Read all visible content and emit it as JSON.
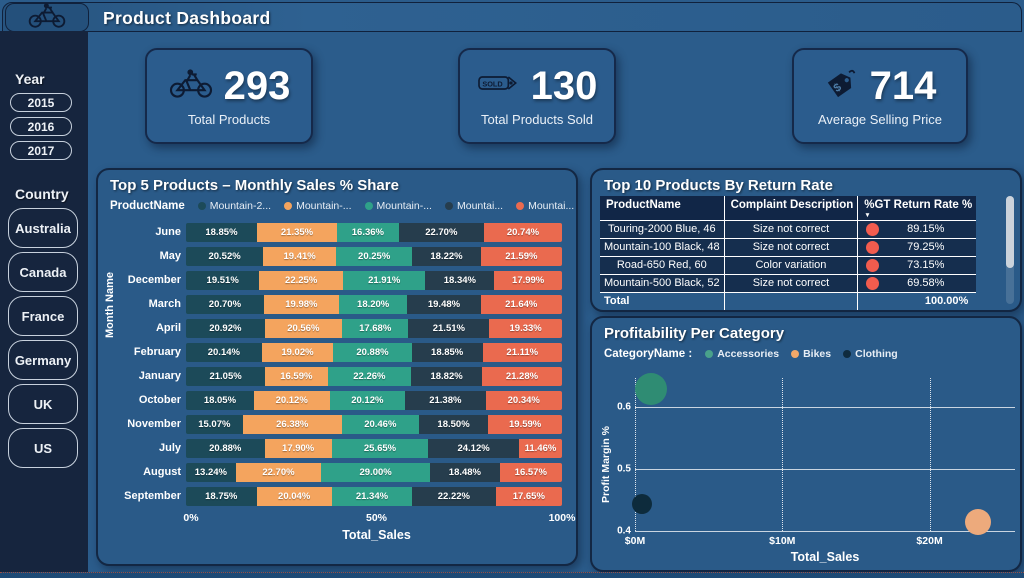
{
  "header": {
    "title": "Product Dashboard"
  },
  "sidebar": {
    "year_label": "Year",
    "years": [
      "2015",
      "2016",
      "2017"
    ],
    "country_label": "Country",
    "countries": [
      "Australia",
      "Canada",
      "France",
      "Germany",
      "UK",
      "US"
    ]
  },
  "kpis": [
    {
      "icon": "bicycle-icon",
      "value": "293",
      "label": "Total Products"
    },
    {
      "icon": "sold-tag-icon",
      "value": "130",
      "label": "Total Products Sold"
    },
    {
      "icon": "price-tag-icon",
      "value": "714",
      "label": "Average Selling Price"
    }
  ],
  "colors": {
    "page_bg": "#2B5C8B",
    "sidebar_bg": "#16253E",
    "table_red_dot": "#F25C4E"
  },
  "chart_data": [
    {
      "type": "bar",
      "title": "Top 5 Products – Monthly Sales % Share",
      "legend_label": "ProductName",
      "series": [
        {
          "name": "Mountain-2...",
          "color": "#1C4A59"
        },
        {
          "name": "Mountain-...",
          "color": "#F4A45E"
        },
        {
          "name": "Mountain-...",
          "color": "#2FA189"
        },
        {
          "name": "Mountai...",
          "color": "#263D4D"
        },
        {
          "name": "Mountai...",
          "color": "#EA6A4F"
        }
      ],
      "categories": [
        "June",
        "May",
        "December",
        "March",
        "April",
        "February",
        "January",
        "October",
        "November",
        "July",
        "August",
        "September"
      ],
      "values": [
        [
          18.85,
          21.35,
          16.36,
          22.7,
          20.74
        ],
        [
          20.52,
          19.41,
          20.25,
          18.22,
          21.59
        ],
        [
          19.51,
          22.25,
          21.91,
          18.34,
          17.99
        ],
        [
          20.7,
          19.98,
          18.2,
          19.48,
          21.64
        ],
        [
          20.92,
          20.56,
          17.68,
          21.51,
          19.33
        ],
        [
          20.14,
          19.02,
          20.88,
          18.85,
          21.11
        ],
        [
          21.05,
          16.59,
          22.26,
          18.82,
          21.28
        ],
        [
          18.05,
          20.12,
          20.12,
          21.38,
          20.34
        ],
        [
          15.07,
          26.38,
          20.46,
          18.5,
          19.59
        ],
        [
          20.88,
          17.9,
          25.65,
          24.12,
          11.46
        ],
        [
          13.24,
          22.7,
          29.0,
          18.48,
          16.57
        ],
        [
          18.75,
          20.04,
          21.34,
          22.22,
          17.65
        ]
      ],
      "xlabel": "Total_Sales",
      "ylabel": "Month Name",
      "x_ticks": [
        {
          "label": "0%",
          "pos": 0
        },
        {
          "label": "50%",
          "pos": 50
        },
        {
          "label": "100%",
          "pos": 100
        }
      ],
      "xlim": [
        0,
        100
      ]
    },
    {
      "type": "table",
      "title": "Top 10 Products By Return Rate",
      "columns": [
        "ProductName",
        "Complaint Description",
        "%GT Return Rate %"
      ],
      "sort_icon": "▼",
      "rows": [
        {
          "product": "Touring-2000 Blue, 46",
          "complaint": "Size not correct",
          "rate": "89.15%"
        },
        {
          "product": "Mountain-100 Black, 48",
          "complaint": "Size not correct",
          "rate": "79.25%"
        },
        {
          "product": "Road-650 Red, 60",
          "complaint": "Color variation",
          "rate": "73.15%"
        },
        {
          "product": "Mountain-500 Black, 52",
          "complaint": "Size not correct",
          "rate": "69.58%"
        }
      ],
      "total_label": "Total",
      "total_value": "100.00%"
    },
    {
      "type": "scatter",
      "title": "Profitability Per Category",
      "legend_label": "CategoryName :",
      "xlabel": "Total_Sales",
      "ylabel": "Profit Margin %",
      "xlim": [
        0,
        25.8
      ],
      "ylim": [
        0.4,
        0.647
      ],
      "x_ticks": [
        {
          "label": "$0M",
          "value": 0
        },
        {
          "label": "$10M",
          "value": 10
        },
        {
          "label": "$20M",
          "value": 20
        }
      ],
      "y_ticks": [
        {
          "label": "0.6",
          "value": 0.6
        },
        {
          "label": "0.5",
          "value": 0.5
        },
        {
          "label": "0.4",
          "value": 0.4
        }
      ],
      "series": [
        {
          "name": "Accessories",
          "color": "#49A18B",
          "x": 1.1,
          "y": 0.63,
          "r": 16,
          "fill": "#2F8C73"
        },
        {
          "name": "Bikes",
          "color": "#F2A869",
          "x": 23.3,
          "y": 0.415,
          "r": 13,
          "fill": "#EDAA7C"
        },
        {
          "name": "Clothing",
          "color": "#0F2B3E",
          "x": 0.5,
          "y": 0.443,
          "r": 10,
          "fill": "#0D2B3C"
        }
      ]
    }
  ]
}
